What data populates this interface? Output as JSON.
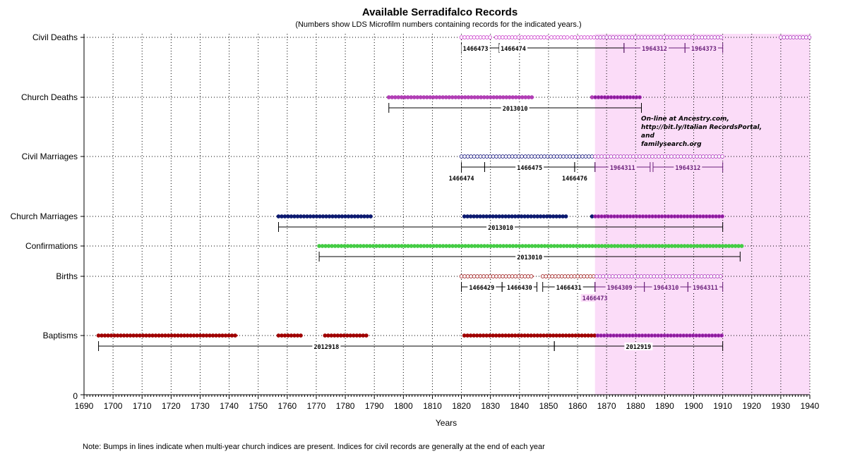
{
  "chart_data": {
    "type": "timeline",
    "title": "Available Serradifalco Records",
    "subtitle": "(Numbers show LDS Microfilm numbers containing records for the indicated years.)",
    "xlabel": "Years",
    "ylabel": "",
    "xlim": [
      1690,
      1940
    ],
    "xticks": [
      1690,
      1700,
      1710,
      1720,
      1730,
      1740,
      1750,
      1760,
      1770,
      1780,
      1790,
      1800,
      1810,
      1820,
      1830,
      1840,
      1850,
      1860,
      1870,
      1880,
      1890,
      1900,
      1910,
      1920,
      1930,
      1940
    ],
    "x_tick_labels": [
      "1690",
      "1700",
      "1710",
      "1720",
      "1730",
      "1740",
      "1750",
      "1760",
      "1770",
      "1780",
      "1790",
      "1800",
      "1810",
      "1820",
      "1830",
      "1840",
      "1850",
      "1860",
      "1870",
      "1880",
      "1890",
      "1900",
      "1910",
      "1920",
      "1930",
      "1940"
    ],
    "y_zero_label": "0",
    "grid": true,
    "highlight_range": [
      1866,
      1940
    ],
    "highlight_color": "#fbdcf8",
    "categories": [
      "Civil Deaths",
      "Church Deaths",
      "Civil Marriages",
      "Church Marriages",
      "Confirmations",
      "Births",
      "Baptisms"
    ],
    "series": [
      {
        "name": "Civil Deaths",
        "color": "#cc44cc",
        "marker": "open",
        "segments": [
          [
            1820,
            1830
          ],
          [
            1832,
            1842
          ],
          [
            1843,
            1850
          ],
          [
            1851,
            1857
          ],
          [
            1858,
            1910
          ],
          [
            1930,
            1940
          ]
        ]
      },
      {
        "name": "Church Deaths",
        "color": "#b13fb5",
        "marker": "filled",
        "segments": [
          [
            1795,
            1845
          ],
          [
            1865,
            1882
          ]
        ]
      },
      {
        "name": "Civil Marriages",
        "color": "#1a1a80",
        "marker": "open",
        "segments": [
          [
            1820,
            1841
          ],
          [
            1842,
            1910
          ]
        ]
      },
      {
        "name": "Church Marriages",
        "color": "#0c1a70",
        "marker": "filled",
        "segments": [
          [
            1757,
            1789
          ],
          [
            1821,
            1856
          ],
          [
            1865,
            1910
          ]
        ]
      },
      {
        "name": "Confirmations",
        "color": "#44cc44",
        "marker": "filled",
        "segments": [
          [
            1771,
            1917
          ]
        ]
      },
      {
        "name": "Births",
        "color": "#a02020",
        "marker": "open",
        "segments": [
          [
            1820,
            1845
          ],
          [
            1848,
            1910
          ]
        ]
      },
      {
        "name": "Baptisms",
        "color": "#a00000",
        "marker": "filled",
        "segments": [
          [
            1695,
            1743
          ],
          [
            1757,
            1765
          ],
          [
            1773,
            1788
          ],
          [
            1821,
            1910
          ]
        ]
      }
    ],
    "microfilms": [
      {
        "row": "Civil Deaths",
        "range": [
          1820,
          1833
        ],
        "label": "1466473",
        "label_pos": "left"
      },
      {
        "row": "Civil Deaths",
        "range": [
          1833,
          1876
        ],
        "label": "1466474",
        "label_pos": "left"
      },
      {
        "row": "Civil Deaths",
        "range": [
          1876,
          1897
        ],
        "label": "1964312",
        "label_pos": "center"
      },
      {
        "row": "Civil Deaths",
        "range": [
          1897,
          1910
        ],
        "label": "1964373",
        "label_pos": "center"
      },
      {
        "row": "Church Deaths",
        "range": [
          1795,
          1882
        ],
        "label": "2013010",
        "label_pos": "center"
      },
      {
        "row": "Civil Marriages",
        "range": [
          1820,
          1828
        ],
        "label": "1466474",
        "label_pos": "below"
      },
      {
        "row": "Civil Marriages",
        "range": [
          1828,
          1859
        ],
        "label": "1466475",
        "label_pos": "center"
      },
      {
        "row": "Civil Marriages",
        "range": [
          1859,
          1866
        ],
        "label": "1466476",
        "label_pos": "below"
      },
      {
        "row": "Civil Marriages",
        "range": [
          1866,
          1885
        ],
        "label": "1964311",
        "label_pos": "center"
      },
      {
        "row": "Civil Marriages",
        "range": [
          1886,
          1910
        ],
        "label": "1964312",
        "label_pos": "center"
      },
      {
        "row": "Church Marriages",
        "range": [
          1757,
          1910
        ],
        "label": "2013010",
        "label_pos": "center"
      },
      {
        "row": "Confirmations",
        "range": [
          1771,
          1916
        ],
        "label": "2013010",
        "label_pos": "center"
      },
      {
        "row": "Births",
        "range": [
          1820,
          1834
        ],
        "label": "1466429",
        "label_pos": "center"
      },
      {
        "row": "Births",
        "range": [
          1834,
          1846
        ],
        "label": "1466430",
        "label_pos": "center"
      },
      {
        "row": "Births",
        "range": [
          1848,
          1866
        ],
        "label": "1466431",
        "label_pos": "center"
      },
      {
        "row": "Births",
        "range": [
          1866,
          1866
        ],
        "label": "1466473",
        "label_pos": "below"
      },
      {
        "row": "Births",
        "range": [
          1866,
          1883
        ],
        "label": "1964309",
        "label_pos": "center"
      },
      {
        "row": "Births",
        "range": [
          1883,
          1898
        ],
        "label": "1964310",
        "label_pos": "center"
      },
      {
        "row": "Births",
        "range": [
          1898,
          1910
        ],
        "label": "1964311",
        "label_pos": "center"
      },
      {
        "row": "Baptisms",
        "range": [
          1695,
          1852
        ],
        "label": "2012918",
        "label_pos": "center"
      },
      {
        "row": "Baptisms",
        "range": [
          1852,
          1910
        ],
        "label": "2012919",
        "label_pos": "center"
      }
    ]
  },
  "online_note": {
    "line1": "On-line at Ancestry.com,",
    "line2": "http://bit.ly/Italian RecordsPortal,",
    "line3": "and",
    "line4": "familysearch.org"
  },
  "footnote": "Note: Bumps in lines indicate when multi-year church indices are present.    Indices for civil records are generally at the end of each year"
}
